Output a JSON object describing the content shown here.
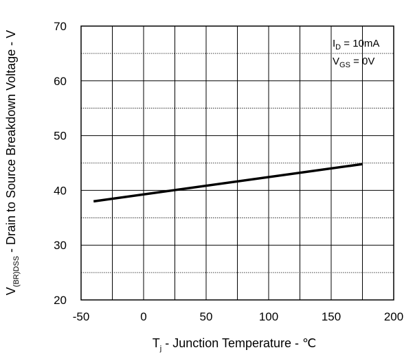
{
  "chart_data": {
    "type": "line",
    "xlabel": {
      "main": "T",
      "sub": "j",
      "rest": " - Junction Temperature - ℃"
    },
    "ylabel": {
      "main": "V",
      "sub": "(BR)DSS",
      "rest": " - Drain to Source Breakdown Voltage - V"
    },
    "xlim": [
      -50,
      200
    ],
    "ylim": [
      20,
      70
    ],
    "xticks": [
      -50,
      0,
      50,
      100,
      150,
      200
    ],
    "yticks": [
      20,
      30,
      40,
      50,
      60,
      70
    ],
    "grid": true,
    "series": [
      {
        "x": [
          -40,
          175
        ],
        "y": [
          38,
          44.8
        ]
      }
    ],
    "annotations": [
      {
        "main": "I",
        "sub": "D",
        "rest": " = 10mA"
      },
      {
        "main": "V",
        "sub": "GS",
        "rest": " = 0V"
      }
    ]
  }
}
